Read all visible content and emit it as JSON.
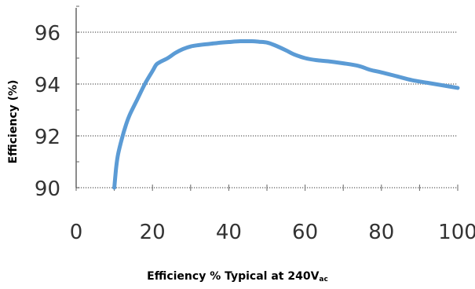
{
  "chart_data": {
    "type": "line",
    "ylabel": "Efficiency (%)",
    "xlabel_main": "Efficiency % Typical at 240V",
    "xlabel_sub": "ac",
    "xlim": [
      0,
      100
    ],
    "ylim": [
      90,
      97
    ],
    "xticks": [
      "0",
      "20",
      "40",
      "60",
      "80",
      "100"
    ],
    "yticks": [
      "90",
      "92",
      "94",
      "96"
    ],
    "grid": "horizontal dotted at 92, 94, 96",
    "colors": {
      "line": "#5b9bd5",
      "grid": "#999999",
      "axis": "#666666"
    },
    "series": [
      {
        "x": [
          10,
          10.5,
          11,
          12,
          13,
          14,
          16,
          18,
          20,
          21,
          22,
          24,
          26,
          28,
          30,
          32,
          35,
          38,
          40,
          43,
          46,
          48,
          50,
          52,
          55,
          57,
          60,
          63,
          66,
          70,
          74,
          77,
          80,
          84,
          88,
          92,
          96,
          100
        ],
        "y": [
          90.0,
          90.8,
          91.3,
          91.9,
          92.4,
          92.8,
          93.4,
          94.0,
          94.5,
          94.75,
          94.85,
          95.0,
          95.2,
          95.35,
          95.45,
          95.5,
          95.55,
          95.6,
          95.62,
          95.65,
          95.65,
          95.63,
          95.6,
          95.5,
          95.3,
          95.15,
          95.0,
          94.92,
          94.88,
          94.8,
          94.7,
          94.55,
          94.45,
          94.3,
          94.15,
          94.05,
          93.95,
          93.85
        ]
      }
    ]
  }
}
